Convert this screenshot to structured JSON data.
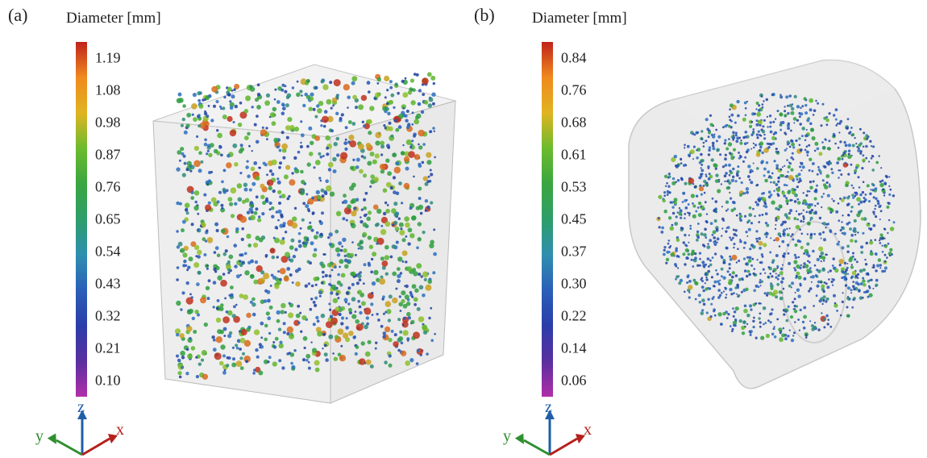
{
  "panels": [
    {
      "label": "(a)",
      "colorbar_title": "Diameter [mm]",
      "colorbar_ticks": [
        "1.19",
        "1.08",
        "0.98",
        "0.87",
        "0.76",
        "0.65",
        "0.54",
        "0.43",
        "0.32",
        "0.21",
        "0.10"
      ]
    },
    {
      "label": "(b)",
      "colorbar_title": "Diameter [mm]",
      "colorbar_ticks": [
        "0.84",
        "0.76",
        "0.68",
        "0.61",
        "0.53",
        "0.45",
        "0.37",
        "0.30",
        "0.22",
        "0.14",
        "0.06"
      ]
    }
  ],
  "axes": {
    "z": "z",
    "y": "y",
    "x": "x",
    "colors": {
      "z": "#1f5fa8",
      "y": "#2f8f2f",
      "x": "#b5201c"
    }
  },
  "pore_colors": [
    "#1f3fa0",
    "#2456b5",
    "#2a6fc0",
    "#2e8a7a",
    "#2f9e3f",
    "#5db52e",
    "#8fbe2a",
    "#c8a020",
    "#d86a1c",
    "#c0301c"
  ]
}
